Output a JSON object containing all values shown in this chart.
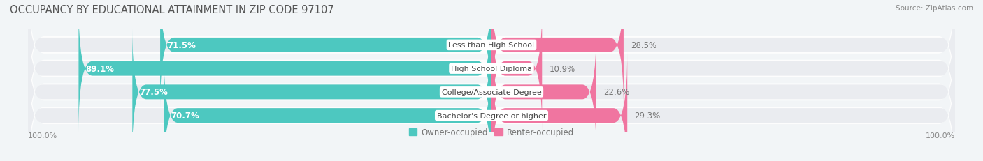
{
  "title": "OCCUPANCY BY EDUCATIONAL ATTAINMENT IN ZIP CODE 97107",
  "source": "Source: ZipAtlas.com",
  "categories": [
    "Less than High School",
    "High School Diploma",
    "College/Associate Degree",
    "Bachelor's Degree or higher"
  ],
  "owner_values": [
    71.5,
    89.1,
    77.5,
    70.7
  ],
  "renter_values": [
    28.5,
    10.9,
    22.6,
    29.3
  ],
  "owner_color": "#4DC8C0",
  "renter_color": "#F075A0",
  "owner_color_light": "#85D8D4",
  "renter_color_light": "#F0A0C0",
  "background_color": "#F2F5F7",
  "row_bg_color": "#EAECF0",
  "bar_height": 0.62,
  "legend_owner": "Owner-occupied",
  "legend_renter": "Renter-occupied",
  "left_label": "100.0%",
  "right_label": "100.0%",
  "title_fontsize": 10.5,
  "source_fontsize": 7.5,
  "label_fontsize": 8.5,
  "tick_fontsize": 8,
  "cat_fontsize": 8
}
